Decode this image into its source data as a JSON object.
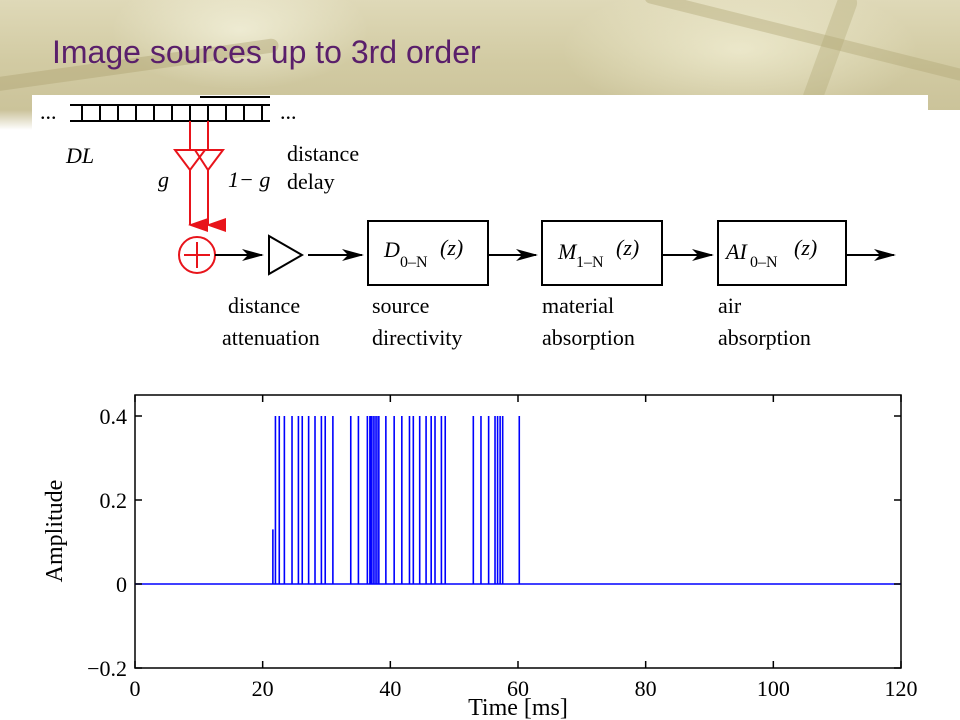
{
  "slide": {
    "title": "Image sources up to 3rd order"
  },
  "diagram": {
    "delay_line": {
      "label": "DL",
      "left_dots": "...",
      "right_dots": "..."
    },
    "gains": {
      "left": "g",
      "right": "1− g"
    },
    "distance_delay": {
      "line1": "distance",
      "line2": "delay"
    },
    "sum_node": {
      "symbol": "+"
    },
    "stages": [
      {
        "id": "distance-attenuation",
        "line1": "distance",
        "line2": "attenuation"
      },
      {
        "id": "source-directivity",
        "func": "D",
        "sub": "0–N",
        "arg": "(z)",
        "line1": "source",
        "line2": "directivity"
      },
      {
        "id": "material-absorption",
        "func": "M",
        "sub": "1–N",
        "arg": "(z)",
        "line1": "material",
        "line2": "absorption"
      },
      {
        "id": "air-absorption",
        "func": "AI",
        "sub": "0–N",
        "arg": "(z)",
        "line1": "air",
        "line2": "absorption"
      }
    ],
    "colors": {
      "feed": "#e8141b",
      "line": "#000000"
    }
  },
  "chart_data": {
    "type": "line",
    "title": "",
    "xlabel": "Time [ms]",
    "ylabel": "Amplitude",
    "xlim": [
      0,
      120
    ],
    "ylim": [
      -0.2,
      0.45
    ],
    "xticks": [
      0,
      20,
      40,
      60,
      80,
      100,
      120
    ],
    "yticks": [
      -0.2,
      0,
      0.2,
      0.4
    ],
    "ytick_labels": [
      "−0.2",
      "0",
      "0.2",
      "0.4"
    ],
    "grid": false,
    "series_color": "#0000ff",
    "impulses": [
      {
        "t": 21.6,
        "a": 0.13
      },
      {
        "t": 22.0,
        "a": 0.4
      },
      {
        "t": 22.6,
        "a": 0.4
      },
      {
        "t": 23.4,
        "a": 0.4
      },
      {
        "t": 24.6,
        "a": 0.4
      },
      {
        "t": 25.6,
        "a": 0.4
      },
      {
        "t": 26.2,
        "a": 0.4
      },
      {
        "t": 27.2,
        "a": 0.4
      },
      {
        "t": 28.2,
        "a": 0.4
      },
      {
        "t": 29.2,
        "a": 0.4
      },
      {
        "t": 29.8,
        "a": 0.4
      },
      {
        "t": 31.0,
        "a": 0.4
      },
      {
        "t": 33.8,
        "a": 0.4
      },
      {
        "t": 35.0,
        "a": 0.4
      },
      {
        "t": 36.4,
        "a": 0.4
      },
      {
        "t": 36.8,
        "a": 0.4
      },
      {
        "t": 37.0,
        "a": 0.4
      },
      {
        "t": 37.3,
        "a": 0.4
      },
      {
        "t": 37.6,
        "a": 0.4
      },
      {
        "t": 37.9,
        "a": 0.4
      },
      {
        "t": 38.2,
        "a": 0.4
      },
      {
        "t": 39.3,
        "a": 0.4
      },
      {
        "t": 40.6,
        "a": 0.4
      },
      {
        "t": 41.8,
        "a": 0.4
      },
      {
        "t": 43.0,
        "a": 0.4
      },
      {
        "t": 43.6,
        "a": 0.4
      },
      {
        "t": 44.6,
        "a": 0.4
      },
      {
        "t": 45.6,
        "a": 0.4
      },
      {
        "t": 46.4,
        "a": 0.4
      },
      {
        "t": 47.0,
        "a": 0.4
      },
      {
        "t": 48.0,
        "a": 0.4
      },
      {
        "t": 48.6,
        "a": 0.4
      },
      {
        "t": 53.0,
        "a": 0.4
      },
      {
        "t": 54.2,
        "a": 0.4
      },
      {
        "t": 55.4,
        "a": 0.4
      },
      {
        "t": 56.4,
        "a": 0.4
      },
      {
        "t": 56.8,
        "a": 0.4
      },
      {
        "t": 57.2,
        "a": 0.4
      },
      {
        "t": 57.6,
        "a": 0.4
      },
      {
        "t": 60.2,
        "a": 0.4
      }
    ]
  }
}
